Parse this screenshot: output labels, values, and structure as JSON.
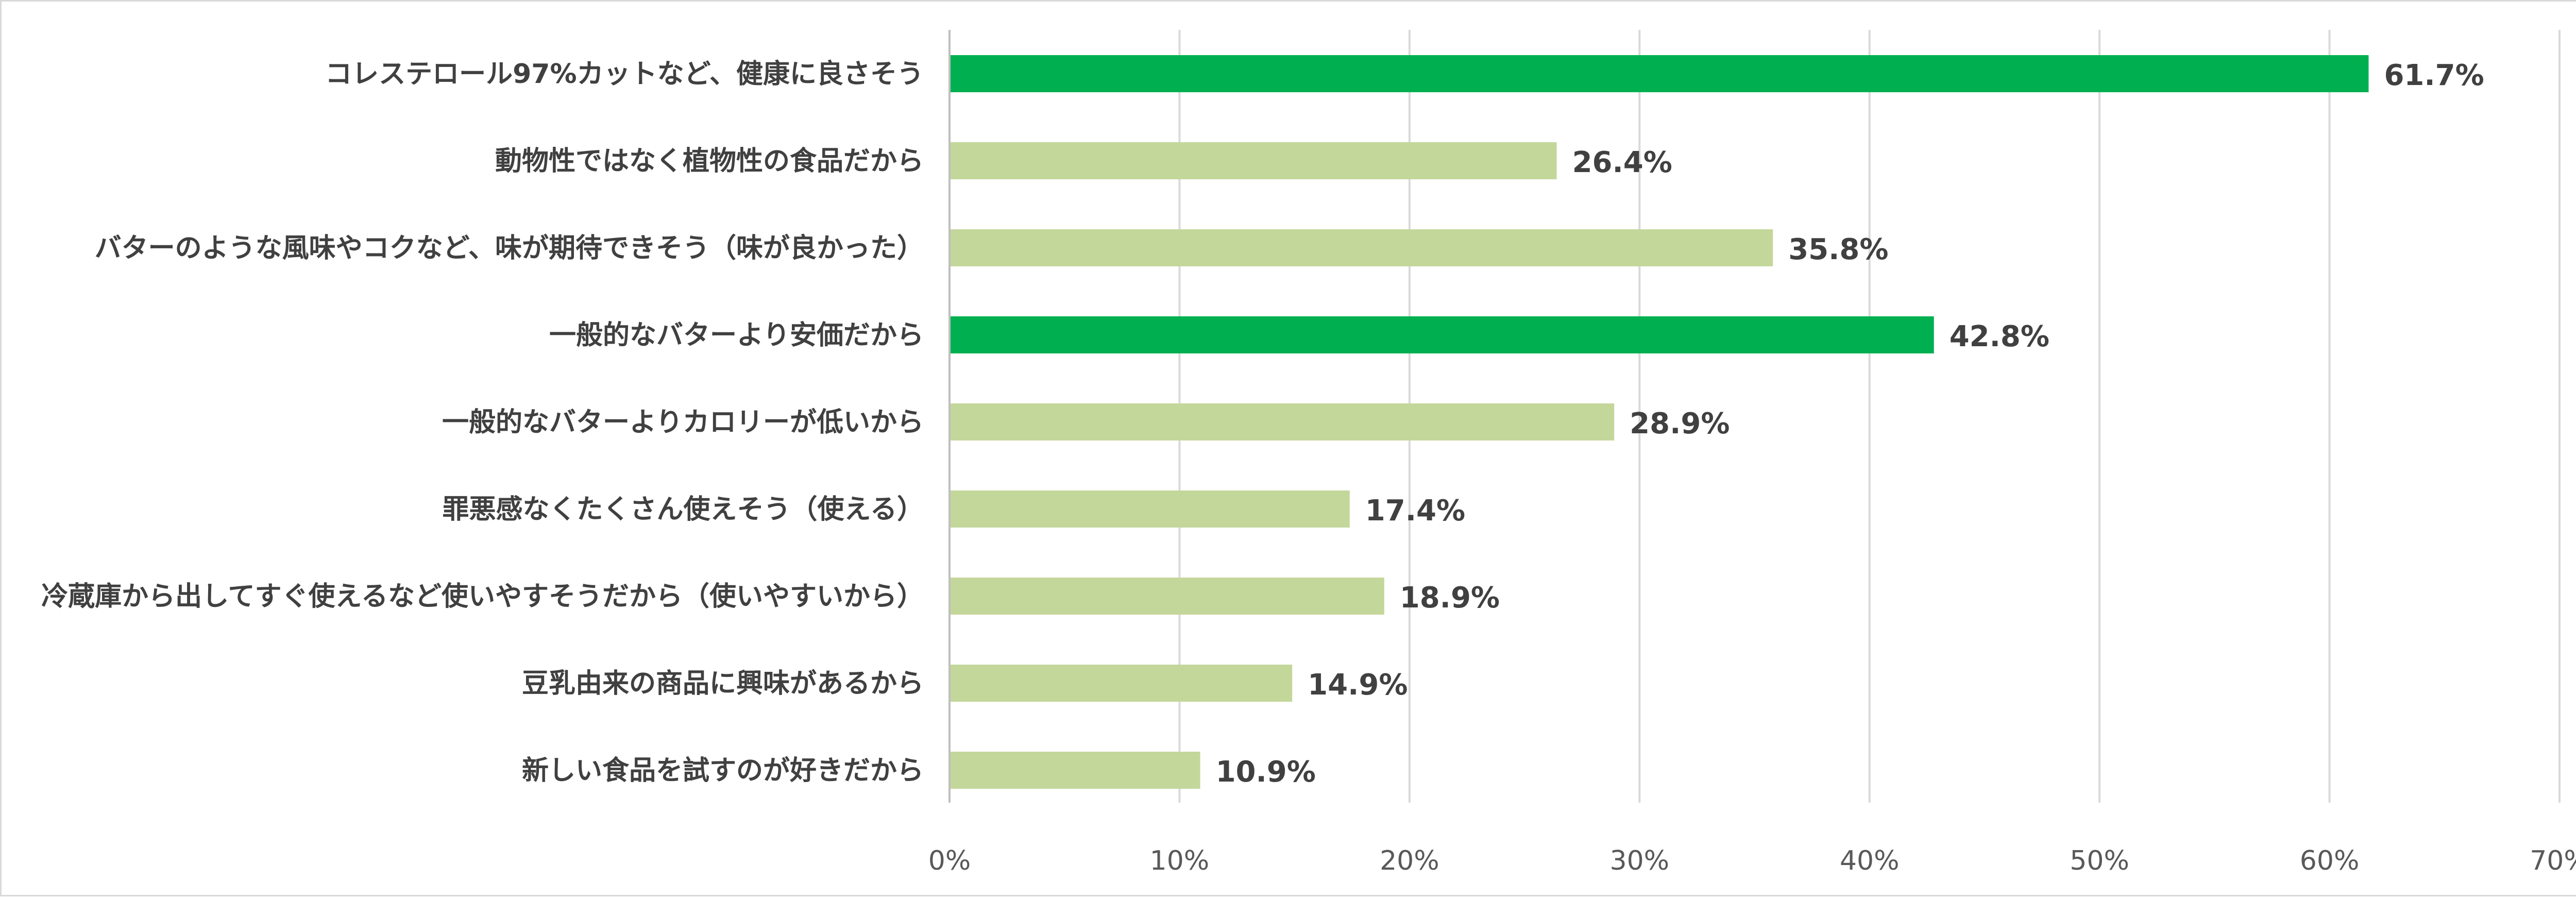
{
  "chart_data": {
    "type": "bar",
    "orientation": "horizontal",
    "title": "",
    "xlabel": "",
    "ylabel": "",
    "xlim": [
      0,
      70
    ],
    "tick_values": [
      0,
      10,
      20,
      30,
      40,
      50,
      60,
      70
    ],
    "tick_labels": [
      "0%",
      "10%",
      "20%",
      "30%",
      "40%",
      "50%",
      "60%",
      "70%"
    ],
    "grid": true,
    "legend": "none",
    "categories": [
      "コレステロール97%カットなど、健康に良さそう",
      "動物性ではなく植物性の食品だから",
      "バターのような風味やコクなど、味が期待できそう（味が良かった）",
      "一般的なバターより安価だから",
      "一般的なバターよりカロリーが低いから",
      "罪悪感なくたくさん使えそう（使える）",
      "冷蔵庫から出してすぐ使えるなど使いやすそうだから（使いやすいから）",
      "豆乳由来の商品に興味があるから",
      "新しい食品を試すのが好きだから"
    ],
    "values": [
      61.7,
      26.4,
      35.8,
      42.8,
      28.9,
      17.4,
      18.9,
      14.9,
      10.9
    ],
    "data_labels": [
      "61.7%",
      "26.4%",
      "35.8%",
      "42.8%",
      "28.9%",
      "17.4%",
      "18.9%",
      "14.9%",
      "10.9%"
    ],
    "highlighted": [
      true,
      false,
      false,
      true,
      false,
      false,
      false,
      false,
      false
    ]
  },
  "colors": {
    "highlight": "#00b050",
    "normal": "#c4d79b",
    "grid": "#d9d9d9",
    "label_text": "#404040",
    "tick_text": "#595959"
  }
}
